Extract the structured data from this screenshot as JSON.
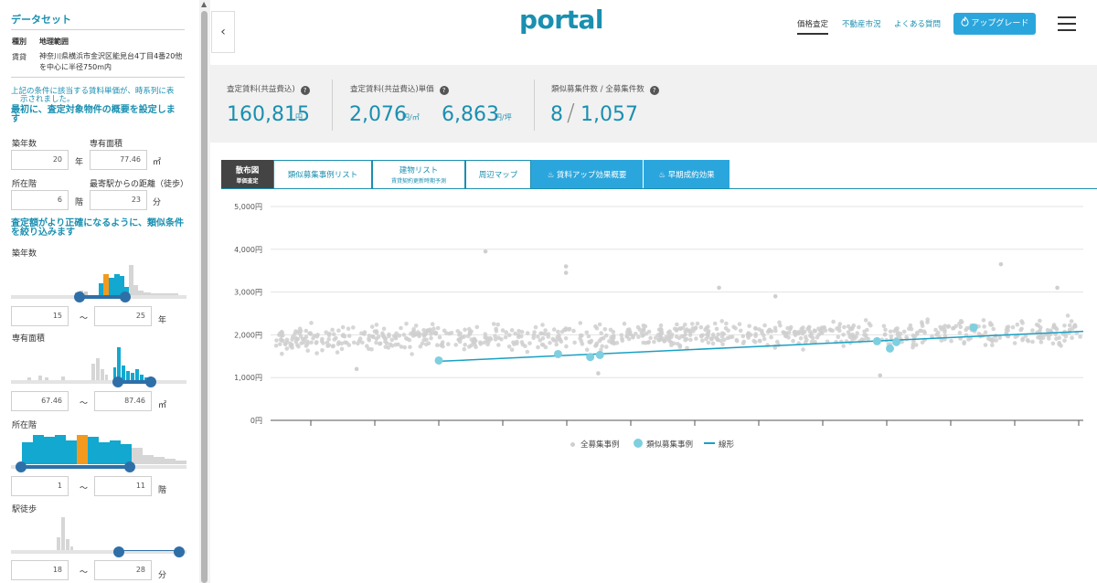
{
  "sidebar": {
    "dataset_title": "データセット",
    "type_label": "種別",
    "type_value": "地理範囲",
    "rent_label": "賃貸",
    "rent_value_line1": "神奈川県横浜市金沢区能見台4丁目4番20他",
    "rent_value_line2": "を中心に半径750m内",
    "note_line1": "上記の条件に該当する賃料単価が、時系列に表",
    "note_line2": "示されました。",
    "setup_line1": "最初に、査定対象物件の概要を設定しま",
    "setup_line2": "す",
    "age_label": "築年数",
    "age_value": "20",
    "age_unit": "年",
    "area_label": "専有面積",
    "area_value": "77.46",
    "area_unit": "㎡",
    "floor_label": "所在階",
    "floor_value": "6",
    "floor_unit": "階",
    "walk_label": "最寄駅からの距離（徒歩）",
    "walk_value": "23",
    "walk_unit": "分",
    "refine_line1": "査定額がより正確になるように、類似条件",
    "refine_line2": "を絞り込みます",
    "filters": {
      "age": {
        "label": "築年数",
        "min": "15",
        "max": "25",
        "unit": "年"
      },
      "area": {
        "label": "専有面積",
        "min": "67.46",
        "max": "87.46",
        "unit": "㎡"
      },
      "floor": {
        "label": "所在階",
        "min": "1",
        "max": "11",
        "unit": "階"
      },
      "walk": {
        "label": "駅徒歩",
        "min": "18",
        "max": "28",
        "unit": "分"
      }
    },
    "range_sep": "〜"
  },
  "header": {
    "collapse_icon": "‹",
    "logo": "portal",
    "nav": [
      {
        "label": "価格査定",
        "active": true
      },
      {
        "label": "不動産市況",
        "active": false
      },
      {
        "label": "よくある質問",
        "active": false
      }
    ],
    "upgrade_label": "アップグレード"
  },
  "stats": {
    "rent_label": "査定賃料(共益費込)",
    "rent_value": "160,815",
    "rent_unit": "円",
    "unit_label": "査定賃料(共益費込)単価",
    "unit_value_sqm": "2,076",
    "unit_sqm": "円/㎡",
    "unit_value_tsubo": "6,863",
    "unit_tsubo": "円/坪",
    "count_label": "類似募集件数 / 全募集件数",
    "count_similar": "8",
    "count_sep": "/",
    "count_total": "1,057",
    "help_icon": "?"
  },
  "tabs": [
    {
      "label": "散布図",
      "sub": "単価査定",
      "style": "dark"
    },
    {
      "label": "類似募集事例リスト",
      "sub": "",
      "style": "outline"
    },
    {
      "label": "建物リスト",
      "sub": "賃貸契約更新時期予測",
      "style": "outline"
    },
    {
      "label": "周辺マップ",
      "sub": "",
      "style": "outline"
    },
    {
      "label": "賃料アップ効果概要",
      "sub": "",
      "style": "fill"
    },
    {
      "label": "早期成約効果",
      "sub": "",
      "style": "fill"
    }
  ],
  "colors": {
    "accent": "#1a8fb0",
    "button": "#2ba6dd",
    "orange": "#f39a1e",
    "histogram": "#12a8cf",
    "grey_point": "#cfcfcf",
    "similar_point": "#7ecfe0",
    "trend": "#1aa0c4"
  },
  "chart_data": {
    "type": "scatter",
    "ylim": [
      0,
      5000
    ],
    "yticks": [
      "0円",
      "1,000円",
      "2,000円",
      "3,000円",
      "4,000円",
      "5,000円"
    ],
    "legend": [
      "全募集事例",
      "類似募集事例",
      "線形"
    ],
    "similar_points": [
      {
        "x": 0.0,
        "y": 1400
      },
      {
        "x": 0.185,
        "y": 1550
      },
      {
        "x": 0.235,
        "y": 1480
      },
      {
        "x": 0.25,
        "y": 1530
      },
      {
        "x": 0.68,
        "y": 1850
      },
      {
        "x": 0.7,
        "y": 1680
      },
      {
        "x": 0.71,
        "y": 1830
      },
      {
        "x": 0.83,
        "y": 2170
      }
    ],
    "trend_line": {
      "x": [
        0.0,
        1.0
      ],
      "y": [
        1380,
        2080
      ]
    },
    "all_cases_count": 1057
  }
}
